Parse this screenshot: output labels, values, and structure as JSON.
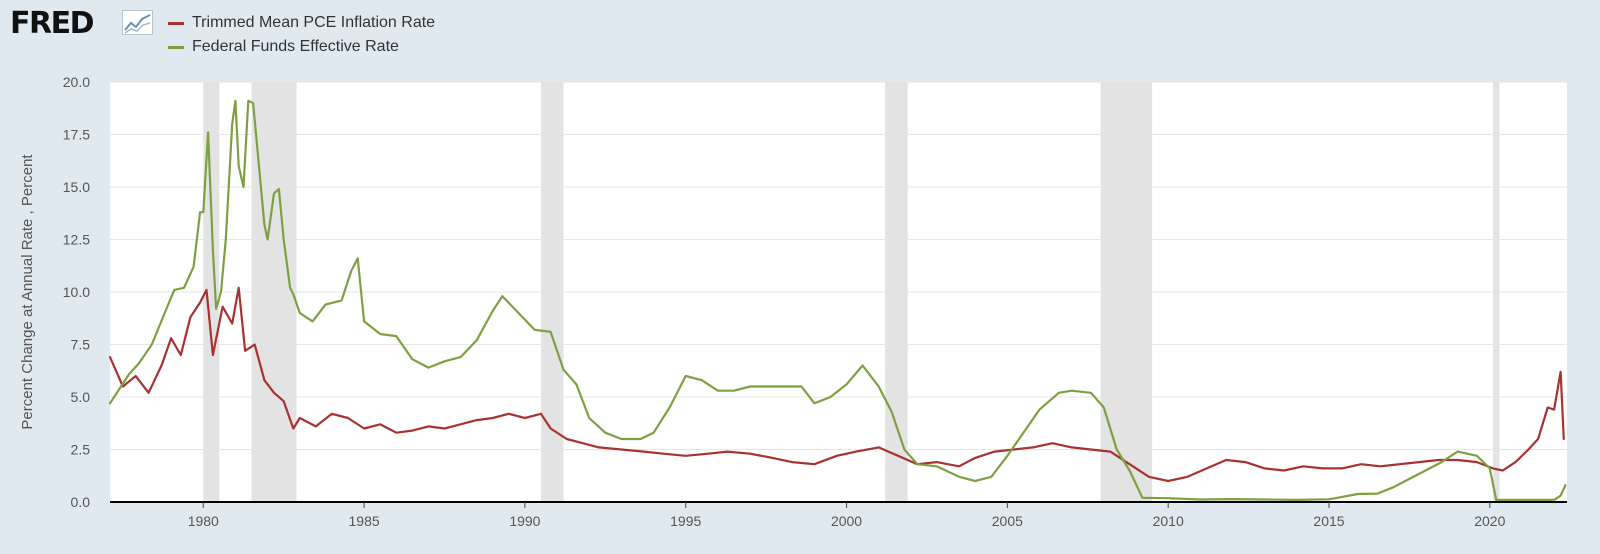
{
  "brand": {
    "name": "FRED"
  },
  "chart_data": {
    "type": "line",
    "title": "",
    "ylabel": "Percent Change at Annual Rate , Percent",
    "ylim": [
      0,
      20
    ],
    "xlim": [
      1977.1,
      2022.4
    ],
    "x_ticks": [
      1980,
      1985,
      1990,
      1995,
      2000,
      2005,
      2010,
      2015,
      2020
    ],
    "y_ticks": [
      "0.0",
      "2.5",
      "5.0",
      "7.5",
      "10.0",
      "12.5",
      "15.0",
      "17.5",
      "20.0"
    ],
    "grid": true,
    "legend_position": "top-left",
    "recessions": [
      [
        1980.0,
        1980.5
      ],
      [
        1981.5,
        1982.9
      ],
      [
        1990.5,
        1991.2
      ],
      [
        2001.2,
        2001.9
      ],
      [
        2007.9,
        2009.5
      ],
      [
        2020.1,
        2020.3
      ]
    ],
    "series": [
      {
        "name": "Trimmed Mean PCE Inflation Rate",
        "color": "#a83232",
        "x": [
          1977.1,
          1977.5,
          1977.9,
          1978.3,
          1978.7,
          1979.0,
          1979.3,
          1979.6,
          1979.9,
          1980.1,
          1980.3,
          1980.6,
          1980.9,
          1981.1,
          1981.3,
          1981.6,
          1981.9,
          1982.2,
          1982.5,
          1982.8,
          1983.0,
          1983.5,
          1984.0,
          1984.5,
          1985.0,
          1985.5,
          1986.0,
          1986.5,
          1987.0,
          1987.5,
          1988.0,
          1988.5,
          1989.0,
          1989.5,
          1990.0,
          1990.5,
          1990.8,
          1991.3,
          1991.8,
          1992.3,
          1993.0,
          1993.7,
          1994.3,
          1995.0,
          1995.7,
          1996.3,
          1997.0,
          1997.7,
          1998.3,
          1999.0,
          1999.7,
          2000.3,
          2001.0,
          2001.6,
          2002.2,
          2002.8,
          2003.5,
          2004.0,
          2004.6,
          2005.2,
          2005.8,
          2006.4,
          2007.0,
          2007.6,
          2008.2,
          2008.8,
          2009.4,
          2010.0,
          2010.6,
          2011.2,
          2011.8,
          2012.4,
          2013.0,
          2013.6,
          2014.2,
          2014.8,
          2015.4,
          2016.0,
          2016.6,
          2017.2,
          2017.8,
          2018.4,
          2019.0,
          2019.6,
          2020.1,
          2020.4,
          2020.8,
          2021.2,
          2021.5,
          2021.8,
          2022.0,
          2022.2,
          2022.3
        ],
        "values": [
          6.9,
          5.5,
          6.0,
          5.2,
          6.5,
          7.8,
          7.0,
          8.8,
          9.5,
          10.1,
          7.0,
          9.3,
          8.5,
          10.2,
          7.2,
          7.5,
          5.8,
          5.2,
          4.8,
          3.5,
          4.0,
          3.6,
          4.2,
          4.0,
          3.5,
          3.7,
          3.3,
          3.4,
          3.6,
          3.5,
          3.7,
          3.9,
          4.0,
          4.2,
          4.0,
          4.2,
          3.5,
          3.0,
          2.8,
          2.6,
          2.5,
          2.4,
          2.3,
          2.2,
          2.3,
          2.4,
          2.3,
          2.1,
          1.9,
          1.8,
          2.2,
          2.4,
          2.6,
          2.2,
          1.8,
          1.9,
          1.7,
          2.1,
          2.4,
          2.5,
          2.6,
          2.8,
          2.6,
          2.5,
          2.4,
          1.8,
          1.2,
          1.0,
          1.2,
          1.6,
          2.0,
          1.9,
          1.6,
          1.5,
          1.7,
          1.6,
          1.6,
          1.8,
          1.7,
          1.8,
          1.9,
          2.0,
          2.0,
          1.9,
          1.6,
          1.5,
          1.9,
          2.5,
          3.0,
          4.5,
          4.4,
          6.2,
          3.0
        ]
      },
      {
        "name": "Federal Funds Effective Rate",
        "color": "#7ea041",
        "x": [
          1977.1,
          1977.4,
          1977.7,
          1978.0,
          1978.4,
          1978.8,
          1979.1,
          1979.4,
          1979.7,
          1979.9,
          1980.0,
          1980.15,
          1980.3,
          1980.4,
          1980.55,
          1980.7,
          1980.9,
          1981.0,
          1981.1,
          1981.25,
          1981.4,
          1981.55,
          1981.7,
          1981.9,
          1982.0,
          1982.2,
          1982.35,
          1982.5,
          1982.7,
          1982.8,
          1983.0,
          1983.4,
          1983.8,
          1984.3,
          1984.6,
          1984.8,
          1985.0,
          1985.5,
          1986.0,
          1986.5,
          1987.0,
          1987.5,
          1988.0,
          1988.5,
          1989.0,
          1989.3,
          1989.8,
          1990.3,
          1990.8,
          1991.2,
          1991.6,
          1992.0,
          1992.5,
          1993.0,
          1993.6,
          1994.0,
          1994.5,
          1995.0,
          1995.5,
          1996.0,
          1996.5,
          1997.0,
          1997.5,
          1998.0,
          1998.6,
          1999.0,
          1999.5,
          2000.0,
          2000.5,
          2001.0,
          2001.4,
          2001.8,
          2002.2,
          2002.8,
          2003.5,
          2004.0,
          2004.5,
          2005.0,
          2005.5,
          2006.0,
          2006.6,
          2007.0,
          2007.6,
          2008.0,
          2008.4,
          2008.8,
          2009.2,
          2010.0,
          2011.0,
          2012.0,
          2013.0,
          2014.0,
          2015.0,
          2015.9,
          2016.5,
          2017.0,
          2017.5,
          2018.0,
          2018.5,
          2019.0,
          2019.6,
          2020.0,
          2020.2,
          2020.5,
          2021.0,
          2021.5,
          2022.0,
          2022.2,
          2022.35
        ],
        "values": [
          4.7,
          5.4,
          6.1,
          6.6,
          7.5,
          9.0,
          10.1,
          10.2,
          11.2,
          13.8,
          13.8,
          17.6,
          12.0,
          9.2,
          10.0,
          12.5,
          18.0,
          19.1,
          16.0,
          15.0,
          19.1,
          19.0,
          16.5,
          13.2,
          12.5,
          14.7,
          14.9,
          12.5,
          10.2,
          9.9,
          9.0,
          8.6,
          9.4,
          9.6,
          11.0,
          11.6,
          8.6,
          8.0,
          7.9,
          6.8,
          6.4,
          6.7,
          6.9,
          7.7,
          9.1,
          9.8,
          9.0,
          8.2,
          8.1,
          6.3,
          5.6,
          4.0,
          3.3,
          3.0,
          3.0,
          3.3,
          4.5,
          6.0,
          5.8,
          5.3,
          5.3,
          5.5,
          5.5,
          5.5,
          5.5,
          4.7,
          5.0,
          5.6,
          6.5,
          5.5,
          4.3,
          2.5,
          1.8,
          1.7,
          1.2,
          1.0,
          1.2,
          2.2,
          3.3,
          4.4,
          5.2,
          5.3,
          5.2,
          4.5,
          2.5,
          1.5,
          0.2,
          0.18,
          0.12,
          0.14,
          0.12,
          0.1,
          0.13,
          0.38,
          0.4,
          0.7,
          1.1,
          1.5,
          1.9,
          2.4,
          2.2,
          1.6,
          0.1,
          0.1,
          0.1,
          0.1,
          0.1,
          0.3,
          0.8
        ]
      }
    ]
  }
}
